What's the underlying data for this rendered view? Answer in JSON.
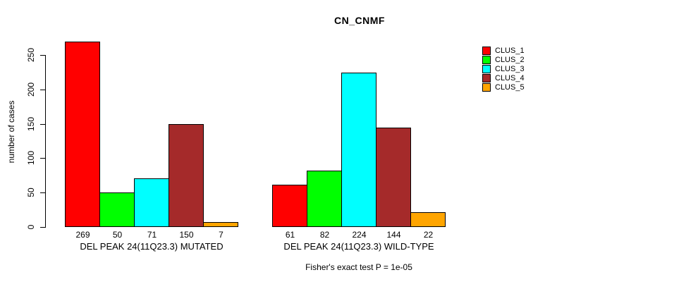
{
  "title": "CN_CNMF",
  "footer": "Fisher's exact test P = 1e-05",
  "colors": {
    "clus_1": "#FF0000",
    "clus_2": "#00FF00",
    "clus_3": "#00FFFF",
    "clus_4": "#A52A2A",
    "clus_5": "#FFA500",
    "axis": "#000000",
    "background": "#FFFFFF"
  },
  "chart_data": {
    "type": "bar",
    "title": "CN_CNMF",
    "xlabel": "",
    "ylabel": "number of cases",
    "ylim": [
      0,
      250
    ],
    "yticks": [
      0,
      50,
      100,
      150,
      200,
      250
    ],
    "grid": false,
    "legend_position": "right",
    "categories": [
      "DEL PEAK 24(11Q23.3) MUTATED",
      "DEL PEAK 24(11Q23.3) WILD-TYPE"
    ],
    "series": [
      {
        "name": "CLUS_1",
        "color": "#FF0000",
        "values": [
          269,
          61
        ]
      },
      {
        "name": "CLUS_2",
        "color": "#00FF00",
        "values": [
          50,
          82
        ]
      },
      {
        "name": "CLUS_3",
        "color": "#00FFFF",
        "values": [
          71,
          224
        ]
      },
      {
        "name": "CLUS_4",
        "color": "#A52A2A",
        "values": [
          150,
          144
        ]
      },
      {
        "name": "CLUS_5",
        "color": "#FFA500",
        "values": [
          7,
          22
        ]
      }
    ],
    "bar_value_labels": [
      [
        269,
        50,
        71,
        150,
        7
      ],
      [
        61,
        82,
        224,
        144,
        22
      ]
    ],
    "annotation": "Fisher's exact test P = 1e-05"
  }
}
